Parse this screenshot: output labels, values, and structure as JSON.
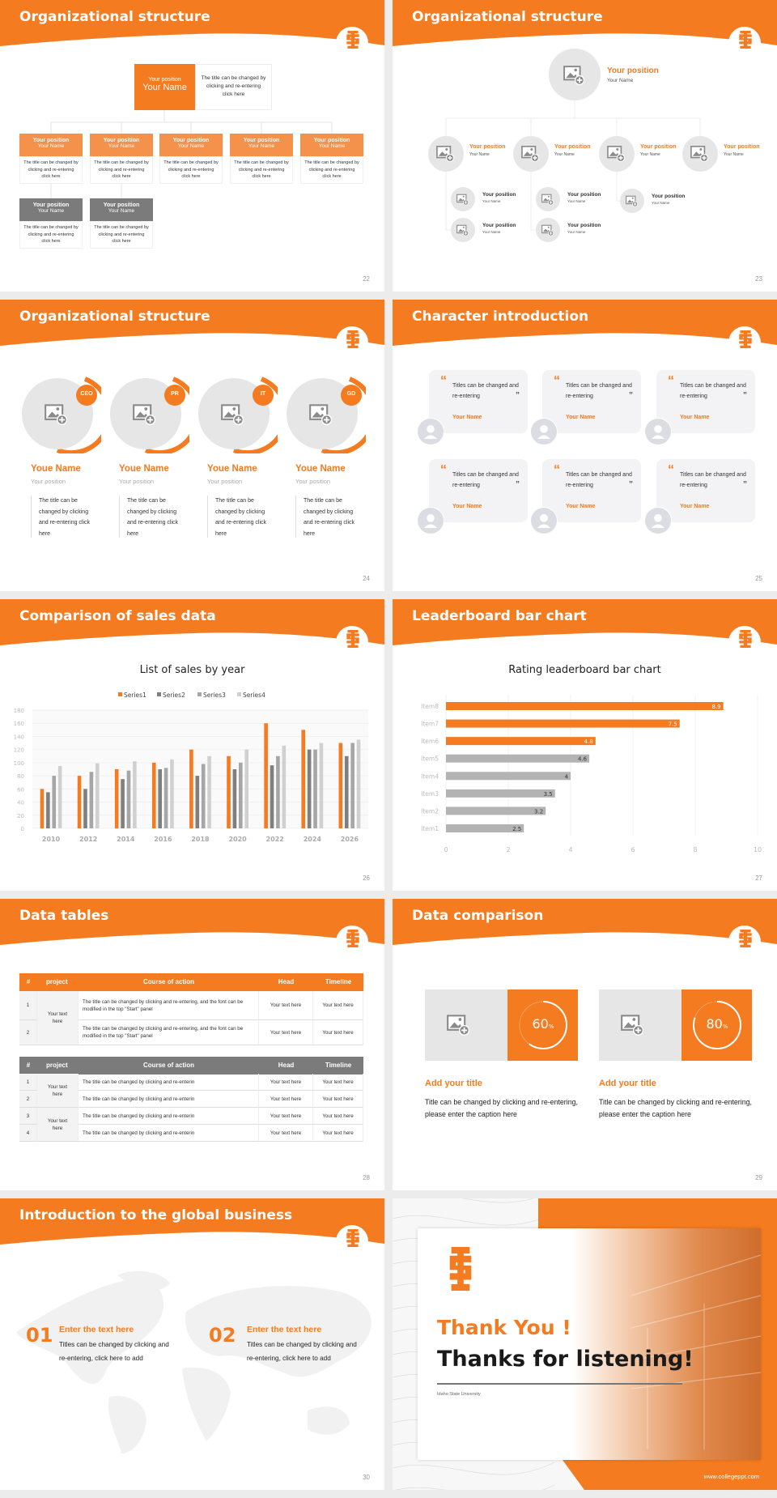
{
  "colors": {
    "accent": "#f47b20",
    "gray_dark": "#7f7f7f",
    "gray_mid": "#a6a6a6",
    "gray_light": "#d0d0d0",
    "panel": "#e6e6e6"
  },
  "icons": {
    "logo": "is-monogram-logo",
    "image": "image-placeholder-icon",
    "avatar": "person-avatar-icon",
    "quote": "quote-icon"
  },
  "s22": {
    "title": "Organizational structure",
    "page": "22",
    "top": {
      "position": "Your position",
      "name": "Your Name",
      "desc": "The title can be changed by clicking and re-entering click here"
    },
    "children": [
      {
        "position": "Your position",
        "name": "Your Name",
        "desc": "The title can be changed by clicking and re-entering click here"
      },
      {
        "position": "Your position",
        "name": "Your Name",
        "desc": "The title can be changed by clicking and re-entering click here"
      },
      {
        "position": "Your position",
        "name": "Your Name",
        "desc": "The title can be changed by clicking and re-entering click here"
      },
      {
        "position": "Your position",
        "name": "Your Name",
        "desc": "The title can be changed by clicking and re-entering click here"
      },
      {
        "position": "Your position",
        "name": "Your Name",
        "desc": "The title can be changed by clicking and re-entering click here"
      },
      {
        "position": "Your position",
        "name": "Your Name",
        "desc": "The title can be changed by clicking and re-entering click here"
      },
      {
        "position": "Your position",
        "name": "Your Name",
        "desc": "The title can be changed by clicking and re-entering click here"
      }
    ]
  },
  "s23": {
    "title": "Organizational structure",
    "page": "23",
    "top": {
      "position": "Your position",
      "name": "Your Name"
    },
    "level2": [
      {
        "position": "Your position",
        "name": "Your Name"
      },
      {
        "position": "Your position",
        "name": "Your Name"
      },
      {
        "position": "Your position",
        "name": "Your Name"
      },
      {
        "position": "Your position",
        "name": "Your Name"
      }
    ],
    "level3": [
      {
        "position": "Your position",
        "name": "Your Name"
      },
      {
        "position": "Your position",
        "name": "Your Name"
      },
      {
        "position": "Your position",
        "name": "Your Name"
      },
      {
        "position": "Your position",
        "name": "Your Name"
      },
      {
        "position": "Your position",
        "name": "Your Name"
      }
    ]
  },
  "s24": {
    "title": "Organizational structure",
    "page": "24",
    "members": [
      {
        "badge": "CEO",
        "name": "Youe Name",
        "position": "Your position",
        "desc": "The title can be changed by clicking and re-entering click here"
      },
      {
        "badge": "PR",
        "name": "Youe Name",
        "position": "Your position",
        "desc": "The title can be changed by clicking and re-entering click here"
      },
      {
        "badge": "IT",
        "name": "Youe Name",
        "position": "Your position",
        "desc": "The title can be changed by clicking and re-entering click here"
      },
      {
        "badge": "GD",
        "name": "Youe Name",
        "position": "Your position",
        "desc": "The title can be changed by clicking and re-entering click here"
      }
    ]
  },
  "s25": {
    "title": "Character introduction",
    "page": "25",
    "open_quote": "“",
    "close_quote": "”",
    "cards": [
      {
        "quote": "Titles can be changed and re-entering",
        "name": "Your Name"
      },
      {
        "quote": "Titles can be changed and re-entering",
        "name": "Your Name"
      },
      {
        "quote": "Titles can be changed and re-entering",
        "name": "Your Name"
      },
      {
        "quote": "Titles can be changed and re-entering",
        "name": "Your Name"
      },
      {
        "quote": "Titles can be changed and re-entering",
        "name": "Your Name"
      },
      {
        "quote": "Titles can be changed and re-entering",
        "name": "Your Name"
      }
    ]
  },
  "s26": {
    "title": "Comparison of sales data",
    "page": "26"
  },
  "s27": {
    "title": "Leaderboard bar chart",
    "page": "27"
  },
  "chart_data": [
    {
      "type": "bar",
      "title": "List of sales by year",
      "xlabel": "",
      "ylabel": "",
      "ylim": [
        0,
        180
      ],
      "yticks": [
        0,
        20,
        40,
        60,
        80,
        100,
        120,
        140,
        160,
        180
      ],
      "grid": true,
      "legend": "top",
      "categories": [
        "2010",
        "2012",
        "2014",
        "2016",
        "2018",
        "2020",
        "2022",
        "2024",
        "2026"
      ],
      "series": [
        {
          "name": "Series1",
          "color": "#f47b20",
          "values": [
            60,
            80,
            90,
            100,
            120,
            110,
            160,
            150,
            130
          ]
        },
        {
          "name": "Series2",
          "color": "#7f7f7f",
          "values": [
            55,
            60,
            75,
            90,
            80,
            90,
            96,
            120,
            110
          ]
        },
        {
          "name": "Series3",
          "color": "#a6a6a6",
          "values": [
            80,
            86,
            88,
            92,
            98,
            100,
            110,
            120,
            130
          ]
        },
        {
          "name": "Series4",
          "color": "#d0d0d0",
          "values": [
            95,
            99,
            102,
            105,
            110,
            120,
            126,
            130,
            135
          ]
        }
      ]
    },
    {
      "type": "bar",
      "orientation": "horizontal",
      "title": "Rating leaderboard bar chart",
      "xlim": [
        0,
        10
      ],
      "xticks": [
        0,
        2,
        4,
        6,
        8,
        10
      ],
      "grid": true,
      "data_labels": true,
      "categories": [
        "Item8",
        "Item7",
        "Item6",
        "Item5",
        "Item4",
        "Item3",
        "Item2",
        "Item1"
      ],
      "values": [
        8.9,
        7.5,
        4.8,
        4.6,
        4,
        3.5,
        3.2,
        2.5
      ],
      "colors": [
        "#f47b20",
        "#f47b20",
        "#f47b20",
        "#b3b3b3",
        "#b3b3b3",
        "#b3b3b3",
        "#b3b3b3",
        "#b3b3b3"
      ]
    }
  ],
  "s28": {
    "title": "Data tables",
    "page": "28",
    "headers": [
      "#",
      "project",
      "Course of action",
      "Head",
      "Timeline"
    ],
    "table1": {
      "project": "Your text here",
      "rows": [
        {
          "num": "1",
          "action": "The title can be changed by clicking and re-entering, and the font can be modified in the top \"Start\" panel",
          "head": "Your text here",
          "timeline": "Your text here"
        },
        {
          "num": "2",
          "action": "The title can be changed by clicking and re-entering, and the font can be modified in the top \"Start\" panel",
          "head": "Your text here",
          "timeline": "Your text here"
        }
      ]
    },
    "table2": {
      "projects": [
        "Your text here",
        "Your text here"
      ],
      "rows": [
        {
          "num": "1",
          "action": "The title can be changed by clicking and re-enterin",
          "head": "Your text here",
          "timeline": "Your text here"
        },
        {
          "num": "2",
          "action": "The title can be changed by clicking and re-enterin",
          "head": "Your text here",
          "timeline": "Your text here"
        },
        {
          "num": "3",
          "action": "The title can be changed by clicking and re-enterin",
          "head": "Your text here",
          "timeline": "Your text here"
        },
        {
          "num": "4",
          "action": "The title can be changed by clicking and re-enterin",
          "head": "Your text here",
          "timeline": "Your text here"
        }
      ]
    }
  },
  "s29": {
    "title": "Data comparison",
    "page": "29",
    "percent_sign": "%",
    "items": [
      {
        "percent": "60",
        "title": "Add your title",
        "desc": "Title can be changed by clicking and re-entering, please enter the caption here"
      },
      {
        "percent": "80",
        "title": "Add your title",
        "desc": "Title can be changed by clicking and re-entering, please enter the caption here"
      }
    ]
  },
  "s30": {
    "title": "Introduction to the global business",
    "page": "30",
    "items": [
      {
        "num": "01",
        "heading": "Enter the text here",
        "desc": "Titles can be changed by clicking and re-entering, click here to add"
      },
      {
        "num": "02",
        "heading": "Enter the text here",
        "desc": "Titles can be changed by clicking and re-entering, click here to add"
      }
    ]
  },
  "s31": {
    "thank_you": "Thank You !",
    "thanks": "Thanks for listening!",
    "university": "Idaho State University",
    "website": "www.collegeppt.com"
  }
}
